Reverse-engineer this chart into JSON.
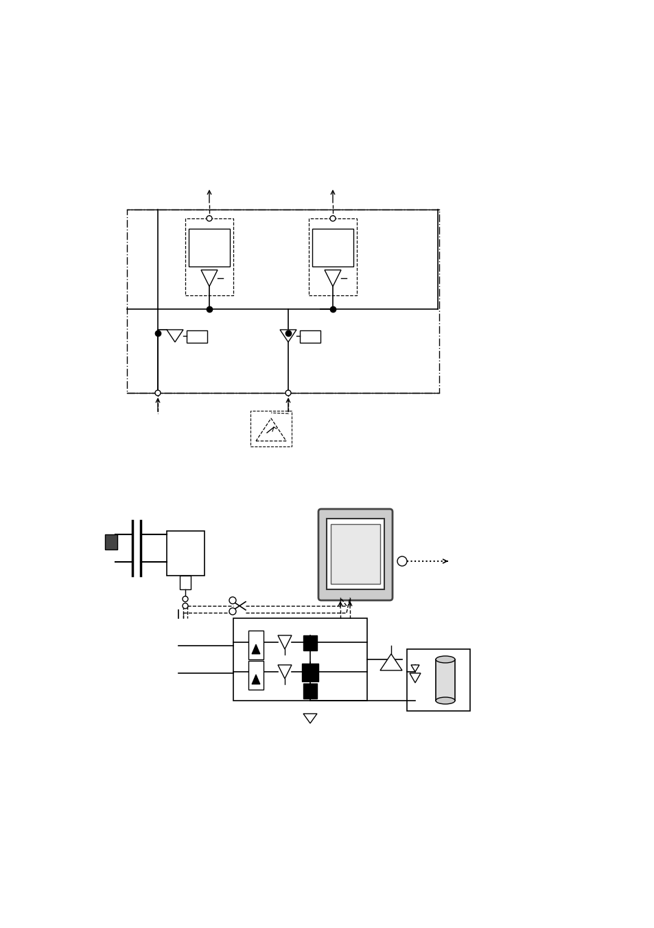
{
  "background_color": "#ffffff",
  "fig_width": 9.54,
  "fig_height": 13.51,
  "dpi": 100
}
